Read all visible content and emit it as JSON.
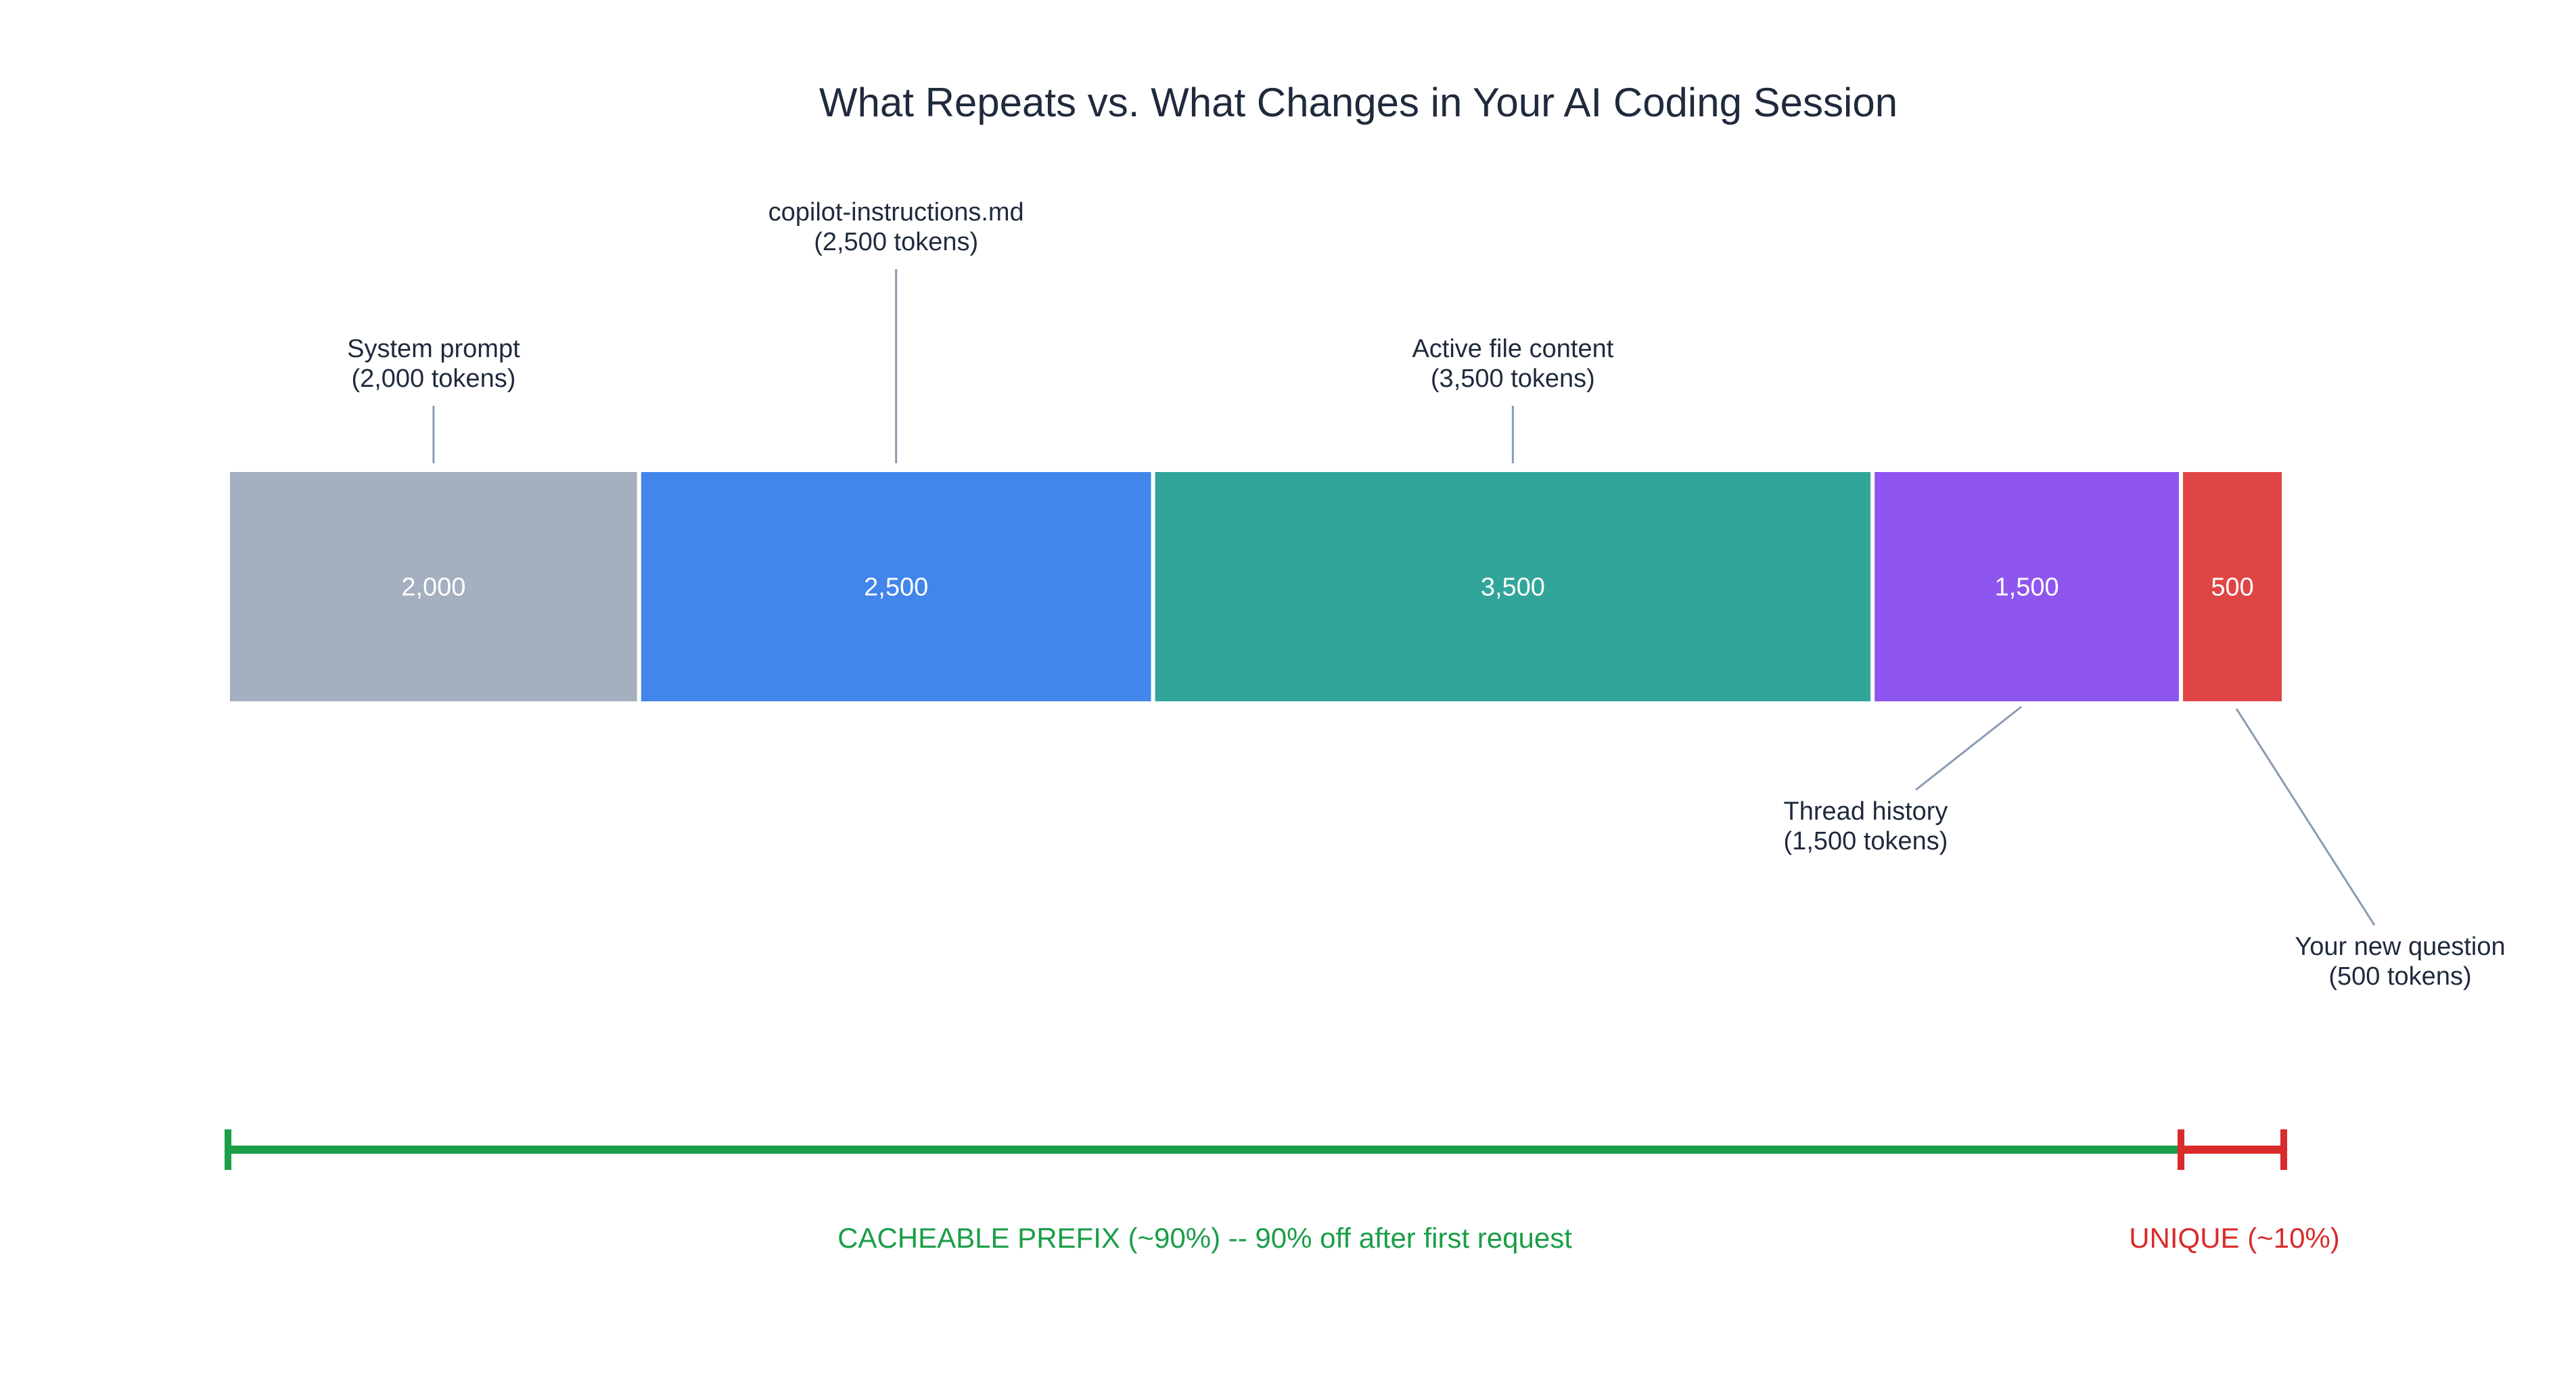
{
  "chart_data": {
    "type": "bar",
    "title": "What Repeats vs. What Changes in Your AI Coding Session",
    "orientation": "horizontal-stacked",
    "units": "tokens",
    "segments": [
      {
        "name": "System prompt",
        "value": 2000,
        "value_label": "2,000",
        "label_line1": "System prompt",
        "label_line2": "(2,000 tokens)",
        "color": "#a4afbf",
        "label_position": "above"
      },
      {
        "name": "copilot-instructions.md",
        "value": 2500,
        "value_label": "2,500",
        "label_line1": "copilot-instructions.md",
        "label_line2": "(2,500 tokens)",
        "color": "#4285eb",
        "label_position": "above-high"
      },
      {
        "name": "Active file content",
        "value": 3500,
        "value_label": "3,500",
        "label_line1": "Active file content",
        "label_line2": "(3,500 tokens)",
        "color": "#32a59a",
        "label_position": "above"
      },
      {
        "name": "Thread history",
        "value": 1500,
        "value_label": "1,500",
        "label_line1": "Thread history",
        "label_line2": "(1,500 tokens)",
        "color": "#8e55ef",
        "label_position": "below"
      },
      {
        "name": "Your new question",
        "value": 500,
        "value_label": "500",
        "label_line1": "Your new question",
        "label_line2": "(500 tokens)",
        "color": "#e04545",
        "label_position": "below-far"
      }
    ],
    "brackets": [
      {
        "label": "CACHEABLE PREFIX (~90%) -- 90% off after first request",
        "from_segment": 0,
        "to_segment": 3,
        "color": "#1a9e48"
      },
      {
        "label": "UNIQUE (~10%)",
        "from_segment": 4,
        "to_segment": 4,
        "color": "#d92b2b"
      }
    ]
  }
}
